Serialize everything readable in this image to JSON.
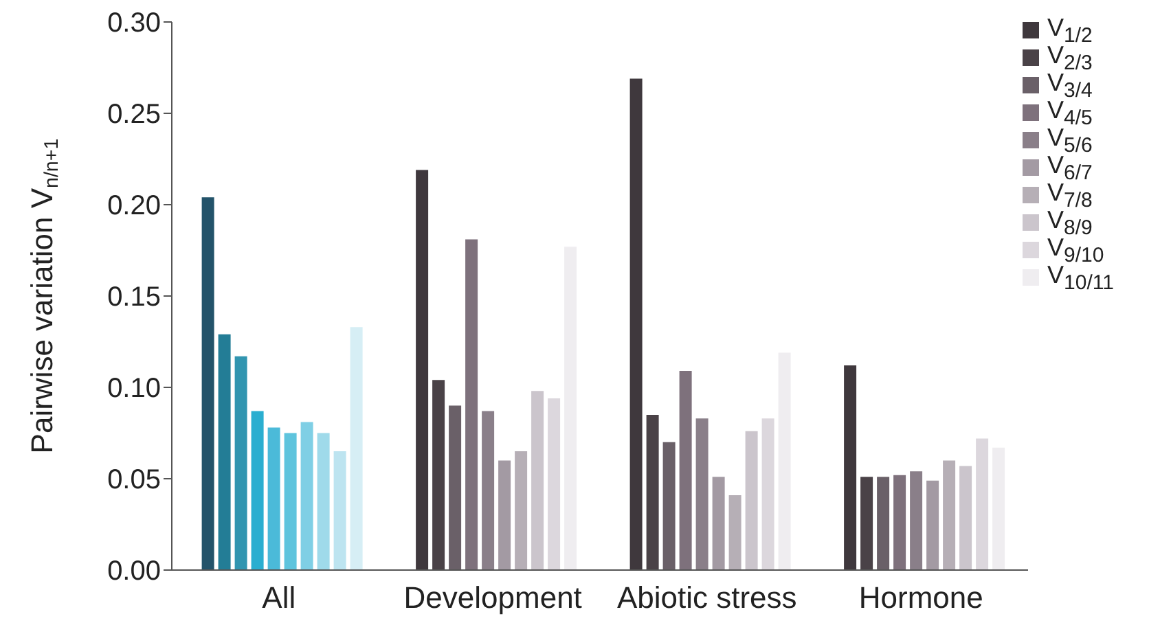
{
  "chart_data": {
    "type": "bar",
    "ylabel": "Pairwise variation V$_{n/n+1}$",
    "categories": [
      "All",
      "Development",
      "Abiotic stress",
      "Hormone"
    ],
    "series": [
      {
        "name": "V$_{1/2}$",
        "color": "#3f383d",
        "colors": [
          "#23536a",
          "#3f383d",
          "#3f383d",
          "#3f383d"
        ],
        "values": [
          0.204,
          0.219,
          0.269,
          0.112
        ]
      },
      {
        "name": "V$_{2/3}$",
        "color": "#4a4247",
        "colors": [
          "#237d96",
          "#4a4247",
          "#4a4247",
          "#4a4247"
        ],
        "values": [
          0.129,
          0.104,
          0.085,
          0.051
        ]
      },
      {
        "name": "V$_{3/4}$",
        "color": "#6a6068",
        "colors": [
          "#3195b0",
          "#6a6068",
          "#6a6068",
          "#6a6068"
        ],
        "values": [
          0.117,
          0.09,
          0.07,
          0.051
        ]
      },
      {
        "name": "V$_{4/5}$",
        "color": "#7e717c",
        "colors": [
          "#2aaed0",
          "#7e717c",
          "#7e717c",
          "#7e717c"
        ],
        "values": [
          0.087,
          0.181,
          0.109,
          0.052
        ]
      },
      {
        "name": "V$_{5/6}$",
        "color": "#8a7f89",
        "colors": [
          "#4bbad9",
          "#8a7f89",
          "#8a7f89",
          "#8a7f89"
        ],
        "values": [
          0.078,
          0.087,
          0.083,
          0.054
        ]
      },
      {
        "name": "V$_{6/7}$",
        "color": "#a39aa3",
        "colors": [
          "#5ec4dd",
          "#a39aa3",
          "#a39aa3",
          "#a39aa3"
        ],
        "values": [
          0.075,
          0.06,
          0.051,
          0.049
        ]
      },
      {
        "name": "V$_{7/8}$",
        "color": "#b6afb6",
        "colors": [
          "#7fcfe5",
          "#b6afb6",
          "#b6afb6",
          "#b6afb6"
        ],
        "values": [
          0.081,
          0.065,
          0.041,
          0.06
        ]
      },
      {
        "name": "V$_{8/9}$",
        "color": "#cbc5cc",
        "colors": [
          "#9fdaea",
          "#cbc5cc",
          "#cbc5cc",
          "#cbc5cc"
        ],
        "values": [
          0.075,
          0.098,
          0.076,
          0.057
        ]
      },
      {
        "name": "V$_{9/10}$",
        "color": "#dcd7dd",
        "colors": [
          "#bde4f0",
          "#dcd7dd",
          "#dcd7dd",
          "#dcd7dd"
        ],
        "values": [
          0.065,
          0.094,
          0.083,
          0.072
        ]
      },
      {
        "name": "V$_{10/11}$",
        "color": "#efedf0",
        "colors": [
          "#d6eef5",
          "#efedf0",
          "#efedf0",
          "#efedf0"
        ],
        "values": [
          0.133,
          0.177,
          0.119,
          0.067
        ]
      }
    ],
    "ylim": [
      0,
      0.3
    ],
    "yticks": [
      {
        "value": 0,
        "label": "0.00"
      },
      {
        "value": 0.05,
        "label": "0.05"
      },
      {
        "value": 0.1,
        "label": "0.10"
      },
      {
        "value": 0.15,
        "label": "0.15"
      },
      {
        "value": 0.2,
        "label": "0.20"
      },
      {
        "value": 0.25,
        "label": "0.25"
      },
      {
        "value": 0.3,
        "label": "0.30"
      }
    ],
    "grid": false,
    "legend": "top right"
  }
}
